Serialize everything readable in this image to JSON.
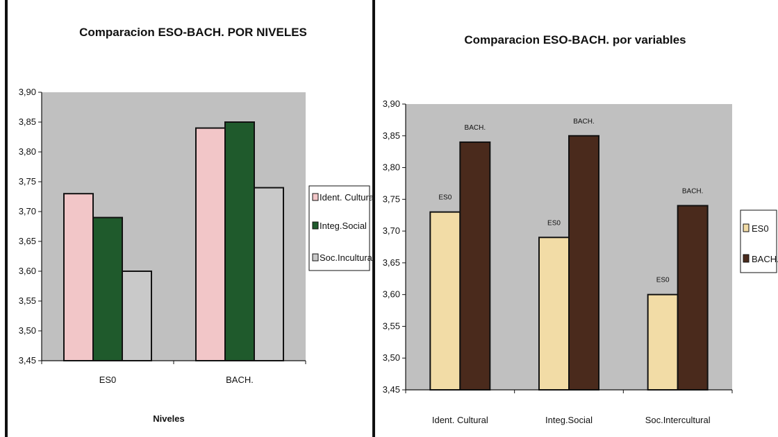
{
  "chart_data": [
    {
      "type": "bar",
      "title": "Comparacion ESO-BACH. POR NIVELES",
      "xlabel": "Niveles",
      "ylabel": "",
      "categories": [
        "ES0",
        "BACH."
      ],
      "series": [
        {
          "name": "Ident. Cultural",
          "values": [
            3.73,
            3.84
          ],
          "color": "#f2c6c8"
        },
        {
          "name": "Integ.Social",
          "values": [
            3.69,
            3.85
          ],
          "color": "#1f5a2c"
        },
        {
          "name": "Soc.Incultural",
          "values": [
            3.6,
            3.74
          ],
          "color": "#c9c9c9"
        }
      ],
      "ylim": [
        3.45,
        3.9
      ],
      "yticks": [
        "3,45",
        "3,50",
        "3,55",
        "3,60",
        "3,65",
        "3,70",
        "3,75",
        "3,80",
        "3,85",
        "3,90"
      ],
      "plot_background": "#c0c0c0",
      "grid": false,
      "legend": "right"
    },
    {
      "type": "bar",
      "title": "Comparacion ESO-BACH. por variables",
      "xlabel": "",
      "ylabel": "",
      "categories": [
        "Ident. Cultural",
        "Integ.Social",
        "Soc.Intercultural"
      ],
      "series": [
        {
          "name": "ES0",
          "values": [
            3.73,
            3.69,
            3.6
          ],
          "color": "#f2dca6",
          "data_label": "ES0"
        },
        {
          "name": "BACH.",
          "values": [
            3.84,
            3.85,
            3.74
          ],
          "color": "#4a2a1c",
          "data_label": "BACH."
        }
      ],
      "ylim": [
        3.45,
        3.9
      ],
      "yticks": [
        "3,45",
        "3,50",
        "3,55",
        "3,60",
        "3,65",
        "3,70",
        "3,75",
        "3,80",
        "3,85",
        "3,90"
      ],
      "plot_background": "#c0c0c0",
      "grid": false,
      "legend": "right"
    }
  ]
}
